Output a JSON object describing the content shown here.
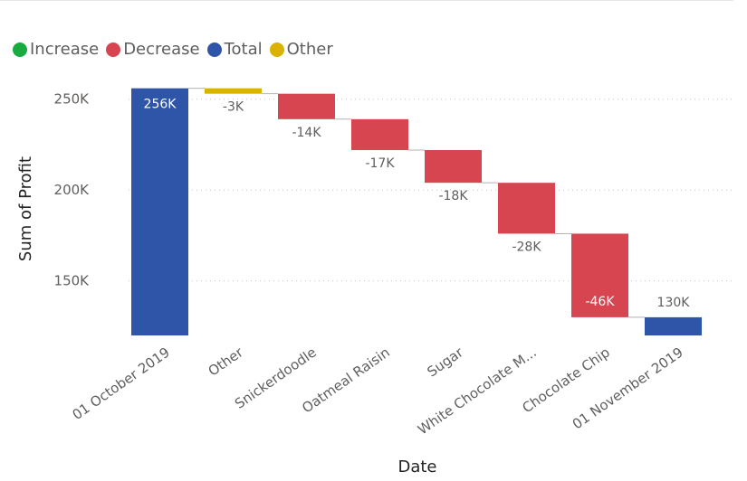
{
  "chart_data": {
    "type": "waterfall",
    "xlabel": "Date",
    "ylabel": "Sum of Profit",
    "y_ticks": [
      150000,
      200000,
      250000
    ],
    "y_tick_labels": [
      "150K",
      "200K",
      "250K"
    ],
    "ylim": [
      120000,
      262000
    ],
    "grid": true,
    "legend": {
      "position": "top-left",
      "items": [
        {
          "name": "Increase",
          "color": "#1aab40"
        },
        {
          "name": "Decrease",
          "color": "#d64550"
        },
        {
          "name": "Total",
          "color": "#2f55a9"
        },
        {
          "name": "Other",
          "color": "#d9b300"
        }
      ]
    },
    "categories": [
      "01 October 2019",
      "Other",
      "Snickerdoodle",
      "Oatmeal Raisin",
      "Sugar",
      "White Chocolate M...",
      "Chocolate Chip",
      "01 November 2019"
    ],
    "values": [
      256000,
      -3000,
      -14000,
      -17000,
      -18000,
      -28000,
      -46000,
      130000
    ],
    "kinds": [
      "Total",
      "Other",
      "Decrease",
      "Decrease",
      "Decrease",
      "Decrease",
      "Decrease",
      "Total"
    ],
    "labels": [
      "256K",
      "-3K",
      "-14K",
      "-17K",
      "-18K",
      "-28K",
      "-46K",
      "130K"
    ]
  }
}
